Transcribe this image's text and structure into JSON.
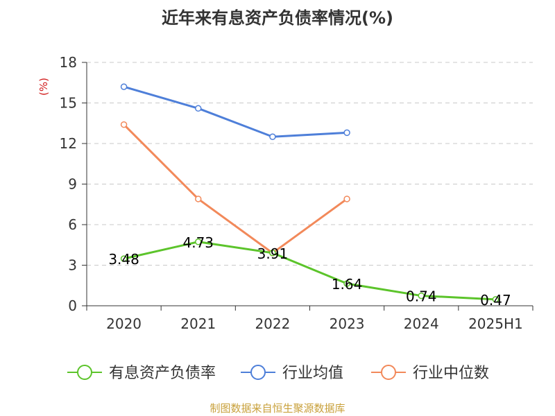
{
  "title": "近年来有息资产负债率情况(%)",
  "source": "制图数据来自恒生聚源数据库",
  "chart_data": {
    "type": "line",
    "title": "近年来有息资产负债率情况(%)",
    "ylabel": "(%)",
    "xlabel": "",
    "categories": [
      "2020",
      "2021",
      "2022",
      "2023",
      "2024",
      "2025H1"
    ],
    "ylim": [
      0,
      18
    ],
    "yticks": [
      0,
      3,
      6,
      9,
      12,
      15,
      18
    ],
    "grid": "horizontal-dashed",
    "legend_position": "bottom",
    "series": [
      {
        "name": "有息资产负债率",
        "color": "#5cc42b",
        "values": [
          3.48,
          4.73,
          3.91,
          1.64,
          0.74,
          0.47
        ],
        "labels": [
          "3.48",
          "4.73",
          "3.91",
          "1.64",
          "0.74",
          "0.47"
        ]
      },
      {
        "name": "行业均值",
        "color": "#4e7fd9",
        "values": [
          16.2,
          14.6,
          12.5,
          12.8,
          null,
          null
        ]
      },
      {
        "name": "行业中位数",
        "color": "#f2895a",
        "values": [
          13.4,
          7.9,
          3.9,
          7.9,
          null,
          null
        ]
      }
    ]
  }
}
